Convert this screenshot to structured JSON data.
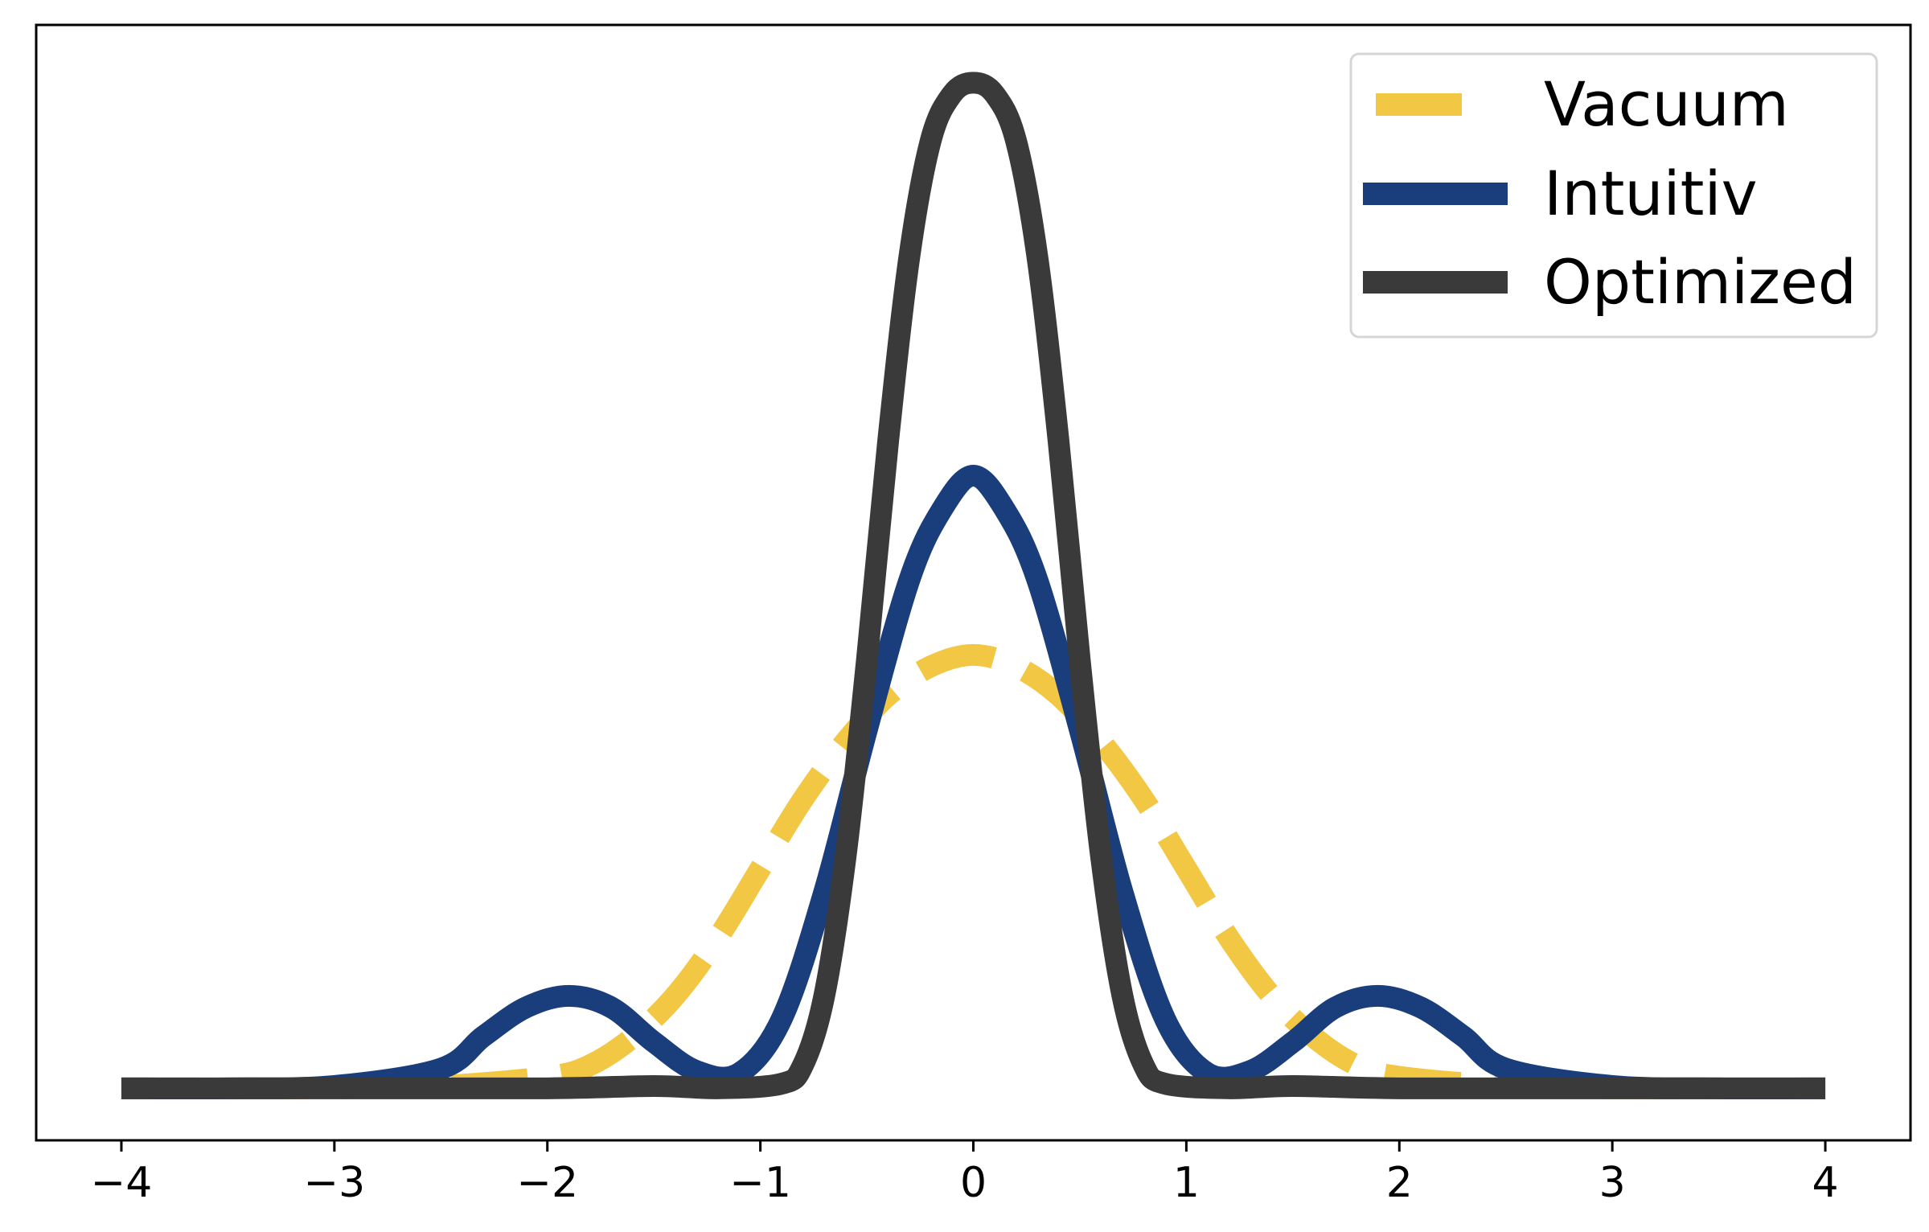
{
  "chart_data": {
    "type": "line",
    "title": "",
    "xlabel": "",
    "ylabel": "",
    "xlim": [
      -4.4,
      4.4
    ],
    "ylim": [
      -0.045,
      0.92
    ],
    "x_ticks": [
      -4,
      -3,
      -2,
      -1,
      0,
      1,
      2,
      3,
      4
    ],
    "x_tick_labels": [
      "−4",
      "−3",
      "−2",
      "−1",
      "0",
      "1",
      "2",
      "3",
      "4"
    ],
    "y_ticks_shown": false,
    "grid": false,
    "legend_position": "top-right",
    "series": [
      {
        "name": "Vacuum",
        "color": "#f2c744",
        "style": "dashed",
        "x": [
          -4.0,
          -3.5,
          -3.0,
          -2.5,
          -2.0,
          -1.8,
          -1.6,
          -1.4,
          -1.2,
          -1.0,
          -0.8,
          -0.6,
          -0.4,
          -0.2,
          0.0,
          0.2,
          0.4,
          0.6,
          0.8,
          1.0,
          1.2,
          1.4,
          1.6,
          1.8,
          2.0,
          2.5,
          3.0,
          3.5,
          4.0
        ],
        "y": [
          0.0,
          0.0,
          0.0,
          0.002,
          0.01,
          0.02,
          0.044,
          0.08,
          0.13,
          0.19,
          0.25,
          0.3,
          0.34,
          0.365,
          0.375,
          0.365,
          0.34,
          0.3,
          0.25,
          0.19,
          0.13,
          0.08,
          0.044,
          0.02,
          0.01,
          0.002,
          0.0,
          0.0,
          0.0
        ]
      },
      {
        "name": "Intuitiv",
        "color": "#1a3d7c",
        "style": "solid",
        "x": [
          -4.0,
          -3.5,
          -3.0,
          -2.5,
          -2.3,
          -2.1,
          -1.9,
          -1.7,
          -1.5,
          -1.3,
          -1.1,
          -0.9,
          -0.7,
          -0.5,
          -0.3,
          -0.15,
          0.0,
          0.15,
          0.3,
          0.5,
          0.7,
          0.9,
          1.1,
          1.3,
          1.5,
          1.7,
          1.9,
          2.1,
          2.3,
          2.5,
          3.0,
          3.5,
          4.0
        ],
        "y": [
          0.0,
          0.0,
          0.002,
          0.017,
          0.045,
          0.07,
          0.08,
          0.07,
          0.04,
          0.015,
          0.013,
          0.06,
          0.17,
          0.31,
          0.44,
          0.5,
          0.53,
          0.5,
          0.44,
          0.31,
          0.17,
          0.06,
          0.013,
          0.015,
          0.04,
          0.07,
          0.08,
          0.07,
          0.045,
          0.017,
          0.002,
          0.0,
          0.0
        ]
      },
      {
        "name": "Optimized",
        "color": "#3a3a3a",
        "style": "solid",
        "x": [
          -4.0,
          -3.0,
          -2.0,
          -1.5,
          -1.2,
          -0.9,
          -0.8,
          -0.7,
          -0.6,
          -0.5,
          -0.4,
          -0.3,
          -0.2,
          -0.1,
          0.0,
          0.1,
          0.2,
          0.3,
          0.4,
          0.5,
          0.6,
          0.7,
          0.8,
          0.9,
          1.2,
          1.5,
          2.0,
          3.0,
          4.0
        ],
        "y": [
          0.0,
          0.0,
          0.0,
          0.002,
          0.0,
          0.004,
          0.02,
          0.08,
          0.2,
          0.37,
          0.56,
          0.72,
          0.82,
          0.86,
          0.87,
          0.86,
          0.82,
          0.72,
          0.56,
          0.37,
          0.2,
          0.08,
          0.02,
          0.004,
          0.0,
          0.002,
          0.0,
          0.0,
          0.0
        ]
      }
    ]
  }
}
